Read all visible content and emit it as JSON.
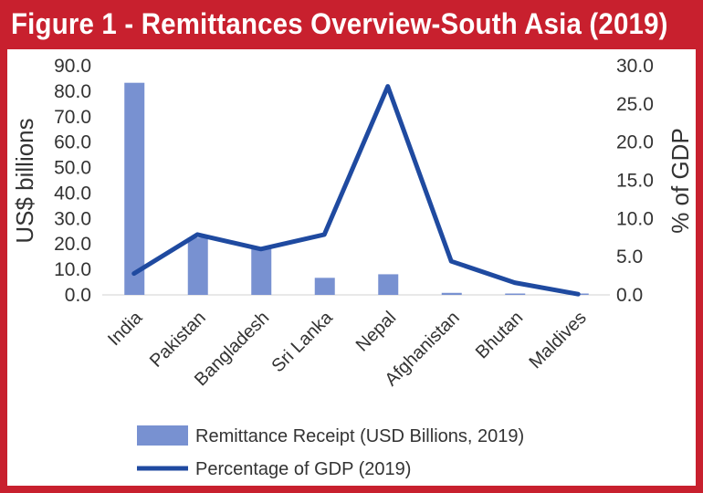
{
  "title": "Figure 1 - Remittances Overview-South Asia (2019)",
  "colors": {
    "frame": "#c8202e",
    "bar": "#7891d1",
    "line": "#1f4aa0"
  },
  "chart_data": {
    "type": "bar",
    "categories": [
      "India",
      "Pakistan",
      "Bangladesh",
      "Sri Lanka",
      "Nepal",
      "Afghanistan",
      "Bhutan",
      "Maldives"
    ],
    "series": [
      {
        "name": "Remittance Receipt (USD Billions, 2019)",
        "type": "bar",
        "axis": "left",
        "values": [
          83.3,
          22.5,
          18.3,
          6.7,
          8.1,
          0.8,
          0.1,
          0.1
        ]
      },
      {
        "name": "Percentage of GDP (2019)",
        "type": "line",
        "axis": "right",
        "values": [
          2.8,
          7.9,
          6.0,
          7.9,
          27.3,
          4.4,
          1.6,
          0.1
        ]
      }
    ],
    "ylabel": "US$ billions",
    "y2label": "% of GDP",
    "ylim": [
      0,
      90
    ],
    "y2lim": [
      0,
      30
    ],
    "yticks": [
      "0.0",
      "10.0",
      "20.0",
      "30.0",
      "40.0",
      "50.0",
      "60.0",
      "70.0",
      "80.0",
      "90.0"
    ],
    "y2ticks": [
      "0.0",
      "5.0",
      "10.0",
      "15.0",
      "20.0",
      "25.0",
      "30.0"
    ],
    "grid": false,
    "legend_position": "bottom"
  }
}
